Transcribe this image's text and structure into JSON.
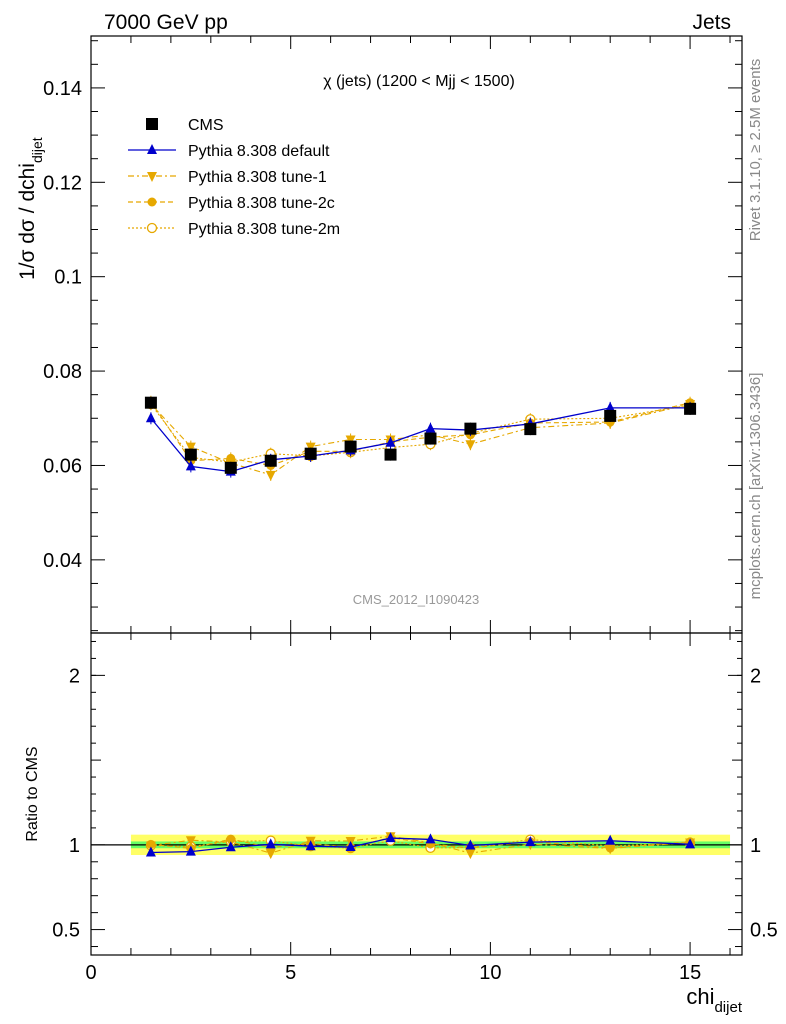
{
  "header": {
    "left": "7000 GeV pp",
    "right": "Jets"
  },
  "side_labels": {
    "rivet": "Rivet 3.1.10, ≥ 2.5M events",
    "mcplots": "mcplots.cern.ch [arXiv:1306.3436]"
  },
  "colors": {
    "cms": "#000000",
    "default": "#0000cc",
    "tune": "#e6a800",
    "band_inner": "#66ff66",
    "band_outer": "#ffff66"
  },
  "chart_data": [
    {
      "type": "line",
      "title": "χ (jets) (1200 < Mjj < 1500)",
      "watermark": "CMS_2012_I1090423",
      "ylabel": "1/σ dσ / dchi",
      "ylabel_sub": "dijet",
      "ylim": [
        0.0245,
        0.151
      ],
      "yticks": [
        0.04,
        0.06,
        0.08,
        0.1,
        0.12,
        0.14
      ],
      "ytick_labels": [
        "0.04",
        "0.06",
        "0.08",
        "0.1",
        "0.12",
        "0.14"
      ],
      "x": [
        1.5,
        2.5,
        3.5,
        4.5,
        5.5,
        6.5,
        7.5,
        8.5,
        9.5,
        11,
        13,
        15
      ],
      "legend_position": "top-left",
      "series": [
        {
          "name": "CMS",
          "key": "cms",
          "marker": "square",
          "values": [
            0.0733,
            0.0623,
            0.0595,
            0.061,
            0.0625,
            0.064,
            0.0623,
            0.0657,
            0.0678,
            0.0677,
            0.0705,
            0.072
          ]
        },
        {
          "name": "Pythia 8.308 default",
          "key": "default",
          "marker": "triangle-up",
          "values": [
            0.07,
            0.0598,
            0.0587,
            0.0612,
            0.062,
            0.0632,
            0.0648,
            0.0678,
            0.0675,
            0.0688,
            0.0722,
            0.0722
          ]
        },
        {
          "name": "Pythia 8.308 tune-1",
          "key": "tune1",
          "marker": "triangle-down",
          "values": [
            0.073,
            0.064,
            0.0605,
            0.058,
            0.064,
            0.0655,
            0.0655,
            0.0665,
            0.0645,
            0.068,
            0.069,
            0.073
          ]
        },
        {
          "name": "Pythia 8.308 tune-2c",
          "key": "tune2c",
          "marker": "circle",
          "values": [
            0.0735,
            0.061,
            0.0615,
            0.06,
            0.063,
            0.063,
            0.065,
            0.066,
            0.0665,
            0.069,
            0.0692,
            0.0733
          ]
        },
        {
          "name": "Pythia 8.308 tune-2m",
          "key": "tune2m",
          "marker": "open-circle",
          "values": [
            0.073,
            0.0617,
            0.0607,
            0.0625,
            0.062,
            0.0628,
            0.0638,
            0.0645,
            0.0668,
            0.0698,
            0.07,
            0.0728
          ]
        }
      ]
    },
    {
      "type": "line",
      "ylabel": "Ratio to CMS",
      "xlabel": "chi",
      "xlabel_sub": "dijet",
      "xlim": [
        0,
        16.3
      ],
      "xticks": [
        0,
        5,
        10,
        15
      ],
      "xtick_labels": [
        "0",
        "5",
        "10",
        "15"
      ],
      "ylim": [
        0.35,
        2.25
      ],
      "yticks": [
        0.5,
        1,
        2
      ],
      "ytick_labels": [
        "0.5",
        "1",
        "2"
      ],
      "band": {
        "x_range": [
          1,
          16
        ],
        "inner": 0.02,
        "outer": 0.06
      },
      "x": [
        1.5,
        2.5,
        3.5,
        4.5,
        5.5,
        6.5,
        7.5,
        8.5,
        9.5,
        11,
        13,
        15
      ],
      "series": [
        {
          "key": "default",
          "values": [
            0.955,
            0.96,
            0.986,
            1.003,
            0.992,
            0.987,
            1.04,
            1.032,
            0.996,
            1.016,
            1.024,
            1.003
          ]
        },
        {
          "key": "tune1",
          "values": [
            0.996,
            1.027,
            1.017,
            0.951,
            1.024,
            1.023,
            1.051,
            1.012,
            0.951,
            1.004,
            0.979,
            1.014
          ]
        },
        {
          "key": "tune2c",
          "values": [
            1.003,
            0.979,
            1.034,
            0.984,
            1.008,
            0.984,
            1.043,
            1.005,
            0.981,
            1.019,
            0.982,
            1.018
          ]
        },
        {
          "key": "tune2m",
          "values": [
            0.996,
            0.99,
            1.02,
            1.025,
            0.992,
            0.981,
            1.024,
            0.982,
            0.985,
            1.031,
            0.993,
            1.011
          ]
        }
      ]
    }
  ]
}
